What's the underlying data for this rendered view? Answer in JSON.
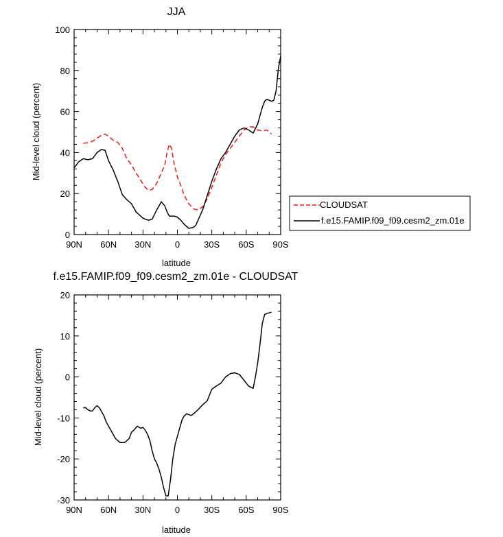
{
  "chart_data": [
    {
      "type": "line",
      "title": "JJA",
      "xlabel": "latitude",
      "ylabel": "Mid-level cloud (percent)",
      "xlim": [
        90,
        -90
      ],
      "ylim": [
        0,
        100
      ],
      "xticks": [
        90,
        60,
        30,
        0,
        -30,
        -60,
        -90
      ],
      "xtick_labels": [
        "90N",
        "60N",
        "30N",
        "0",
        "30S",
        "60S",
        "90S"
      ],
      "yticks": [
        0,
        20,
        40,
        60,
        80,
        100
      ],
      "ytick_labels": [
        "0",
        "20",
        "40",
        "60",
        "80",
        "100"
      ],
      "legend_position": "right",
      "series": [
        {
          "name": "CLOUDSAT",
          "color": "#e8191b",
          "style": "dashed",
          "x": [
            82,
            78,
            74,
            70,
            66,
            63,
            60,
            56,
            52,
            48,
            44,
            40,
            36,
            32,
            28,
            25,
            22,
            18,
            14,
            11,
            9,
            7,
            5,
            3,
            0,
            -3,
            -6,
            -10,
            -14,
            -18,
            -22,
            -26,
            -30,
            -34,
            -38,
            -42,
            -46,
            -50,
            -54,
            -58,
            -62,
            -66,
            -70,
            -74,
            -78,
            -82
          ],
          "y": [
            44.5,
            44.8,
            45.5,
            47,
            48.5,
            49,
            48,
            46,
            45,
            42,
            37,
            34,
            30,
            26.5,
            23,
            21.5,
            22,
            25,
            30,
            34,
            40,
            44,
            42,
            35,
            28,
            24,
            19,
            15,
            12.5,
            12,
            13.5,
            17.5,
            23,
            29,
            35,
            39,
            42,
            45,
            48,
            51,
            52.5,
            52.5,
            51,
            50.5,
            51,
            49
          ]
        },
        {
          "name": "f.e15.FAMIP.f09_f09.cesm2_zm.01e",
          "color": "#000000",
          "style": "solid",
          "x": [
            90,
            86,
            82,
            78,
            74,
            70,
            66,
            63,
            60,
            56,
            52,
            48,
            44,
            40,
            36,
            32,
            30,
            28,
            25,
            22,
            18,
            14,
            11,
            9,
            7,
            5,
            3,
            0,
            -3,
            -6,
            -10,
            -14,
            -16,
            -18,
            -22,
            -26,
            -30,
            -34,
            -38,
            -42,
            -46,
            -50,
            -54,
            -58,
            -62,
            -66,
            -70,
            -74,
            -76,
            -78,
            -80,
            -82,
            -84,
            -86,
            -88,
            -90
          ],
          "y": [
            32.5,
            35.5,
            37,
            36.5,
            37,
            40,
            41.5,
            41,
            36,
            31.5,
            26,
            19.5,
            17,
            15,
            11,
            9,
            8,
            7.5,
            7,
            7.5,
            12,
            16,
            14,
            11,
            9,
            9,
            9,
            8.5,
            7,
            5,
            3,
            3.5,
            4.5,
            7,
            12,
            19,
            26,
            32,
            37,
            40,
            44,
            48,
            51,
            52,
            51,
            49.5,
            54,
            62,
            65,
            66,
            65.5,
            65,
            65.5,
            70,
            81,
            87
          ]
        }
      ]
    },
    {
      "type": "line",
      "title": "f.e15.FAMIP.f09_f09.cesm2_zm.01e - CLOUDSAT",
      "xlabel": "latitude",
      "ylabel": "Mid-level cloud (percent)",
      "xlim": [
        90,
        -90
      ],
      "ylim": [
        -30,
        20
      ],
      "xticks": [
        90,
        60,
        30,
        0,
        -30,
        -60,
        -90
      ],
      "xtick_labels": [
        "90N",
        "60N",
        "30N",
        "0",
        "30S",
        "60S",
        "90S"
      ],
      "yticks": [
        -30,
        -20,
        -10,
        0,
        10,
        20
      ],
      "ytick_labels": [
        "-30",
        "-20",
        "-10",
        "0",
        "10",
        "20"
      ],
      "series": [
        {
          "color": "#000000",
          "style": "solid",
          "x": [
            82,
            80,
            78,
            76,
            74,
            72,
            70,
            68,
            66,
            64,
            62,
            58,
            54,
            50,
            46,
            42,
            40,
            38,
            35,
            32,
            30,
            28,
            26,
            24,
            22,
            20,
            18,
            16,
            14,
            12,
            10,
            8,
            6,
            4,
            2,
            0,
            -2,
            -4,
            -6,
            -8,
            -10,
            -12,
            -14,
            -18,
            -22,
            -26,
            -30,
            -34,
            -38,
            -42,
            -46,
            -50,
            -54,
            -58,
            -62,
            -66,
            -68,
            -70,
            -72,
            -74,
            -76,
            -78,
            -80,
            -82
          ],
          "y": [
            -7.5,
            -7.5,
            -8,
            -8.3,
            -8.3,
            -7.5,
            -7,
            -7.5,
            -8.5,
            -9.5,
            -11,
            -13,
            -15,
            -16,
            -16,
            -15,
            -13.5,
            -13,
            -12,
            -12.5,
            -12.3,
            -13,
            -14,
            -15.5,
            -18,
            -20,
            -21,
            -22.5,
            -24.5,
            -27,
            -29,
            -29,
            -25,
            -20,
            -16.5,
            -14.5,
            -12.5,
            -10.5,
            -9.5,
            -9,
            -9.2,
            -9.4,
            -9,
            -8,
            -6.8,
            -5.8,
            -3,
            -2.2,
            -1.5,
            0,
            0.8,
            1,
            0.6,
            -0.8,
            -2.2,
            -2.8,
            0,
            3.5,
            8,
            13,
            15.2,
            15.5,
            15.6,
            15.8
          ]
        }
      ]
    }
  ]
}
